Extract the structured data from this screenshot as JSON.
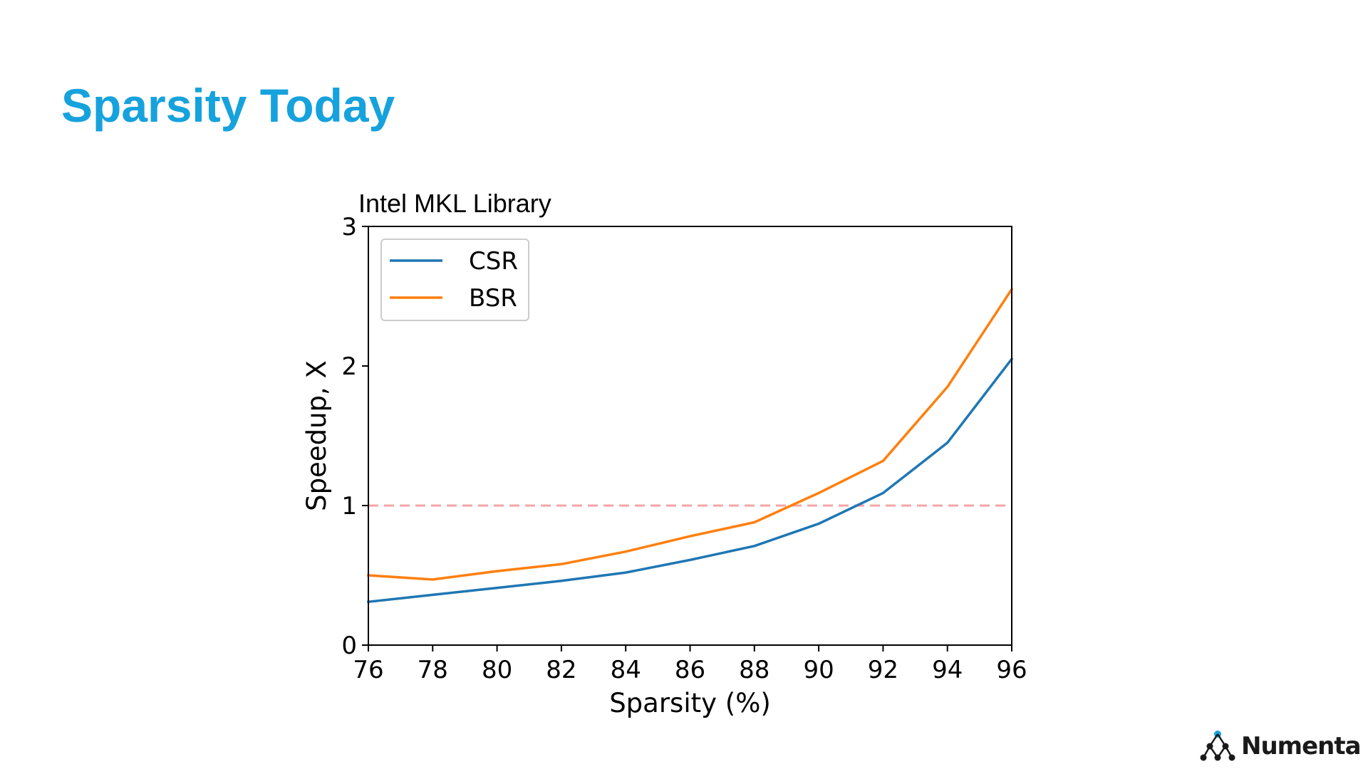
{
  "slide": {
    "title": "Sparsity Today",
    "logo_text": "Numenta",
    "title_color": "#16a2dd"
  },
  "chart_data": {
    "type": "line",
    "title": "Intel MKL Library",
    "xlabel": "Sparsity (%)",
    "ylabel": "Speedup, X",
    "xlim": [
      76,
      96
    ],
    "ylim": [
      0,
      3
    ],
    "xticks": [
      76,
      78,
      80,
      82,
      84,
      86,
      88,
      90,
      92,
      94,
      96
    ],
    "yticks": [
      0,
      1,
      2,
      3
    ],
    "grid": false,
    "legend_position": "top-left",
    "x": [
      76,
      78,
      80,
      82,
      84,
      86,
      88,
      90,
      92,
      94,
      96
    ],
    "series": [
      {
        "name": "CSR",
        "color": "#1f77b4",
        "values": [
          0.31,
          0.36,
          0.41,
          0.46,
          0.52,
          0.61,
          0.71,
          0.87,
          1.09,
          1.45,
          2.05
        ]
      },
      {
        "name": "BSR",
        "color": "#ff7f0e",
        "values": [
          0.5,
          0.47,
          0.53,
          0.58,
          0.67,
          0.78,
          0.88,
          1.09,
          1.32,
          1.85,
          2.55
        ]
      }
    ],
    "reference_line": {
      "y": 1,
      "color": "#f4a5a5",
      "style": "dashed"
    }
  }
}
